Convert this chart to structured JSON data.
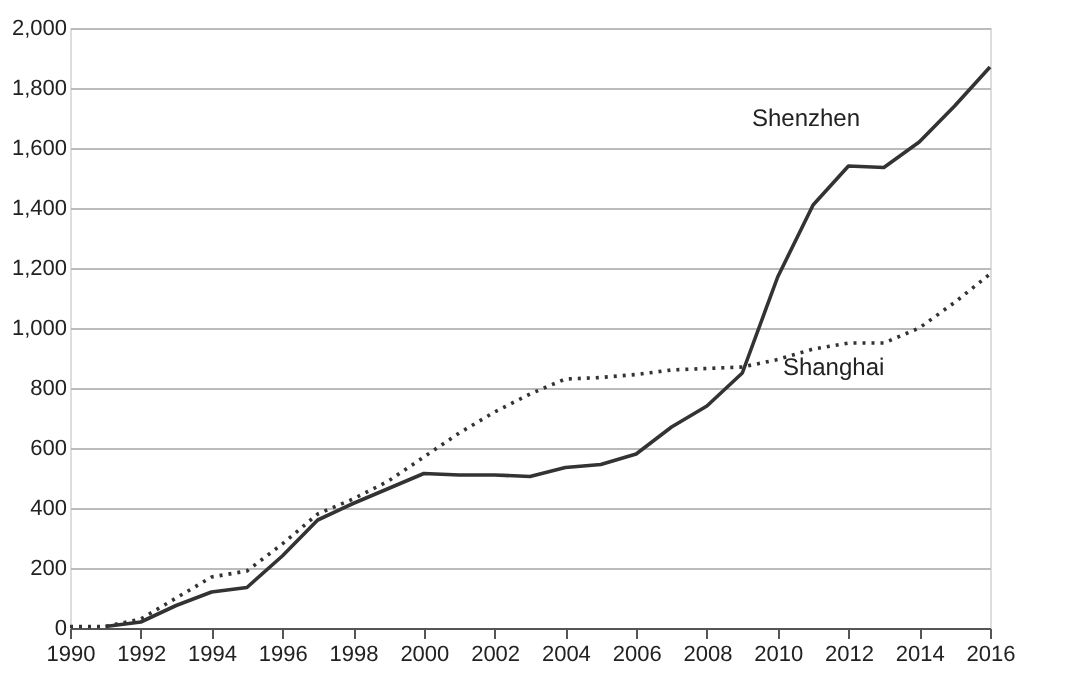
{
  "chart_data": {
    "type": "line",
    "x": [
      1990,
      1991,
      1992,
      1993,
      1994,
      1995,
      1996,
      1997,
      1998,
      1999,
      2000,
      2001,
      2002,
      2003,
      2004,
      2005,
      2006,
      2007,
      2008,
      2009,
      2010,
      2011,
      2012,
      2013,
      2014,
      2015,
      2016
    ],
    "series": [
      {
        "name": "Shenzhen",
        "color": "#333333",
        "line_style": "solid",
        "values": [
          null,
          5,
          20,
          75,
          120,
          135,
          240,
          360,
          415,
          465,
          515,
          510,
          510,
          505,
          535,
          545,
          580,
          670,
          740,
          850,
          1170,
          1410,
          1540,
          1535,
          1620,
          1740,
          1870
        ]
      },
      {
        "name": "Shanghai",
        "color": "#333333",
        "line_style": "dotted",
        "values": [
          5,
          5,
          30,
          100,
          170,
          190,
          280,
          380,
          430,
          490,
          570,
          650,
          720,
          780,
          830,
          835,
          845,
          860,
          865,
          870,
          895,
          930,
          950,
          950,
          1000,
          1085,
          1180
        ]
      }
    ],
    "xlim": [
      1990,
      2016
    ],
    "xticks": [
      1990,
      1992,
      1994,
      1996,
      1998,
      2000,
      2002,
      2004,
      2006,
      2008,
      2010,
      2012,
      2014,
      2016
    ],
    "ylim": [
      0,
      2000
    ],
    "yticks": [
      0,
      200,
      400,
      600,
      800,
      {
        "value": 1000,
        "label": "1,000"
      },
      {
        "value": 1200,
        "label": "1,200"
      },
      {
        "value": 1400,
        "label": "1,400"
      },
      {
        "value": 1600,
        "label": "1,600"
      },
      {
        "value": 1800,
        "label": "1,800"
      },
      {
        "value": 2000,
        "label": "2,000"
      }
    ],
    "grid": "y",
    "legend": false
  }
}
